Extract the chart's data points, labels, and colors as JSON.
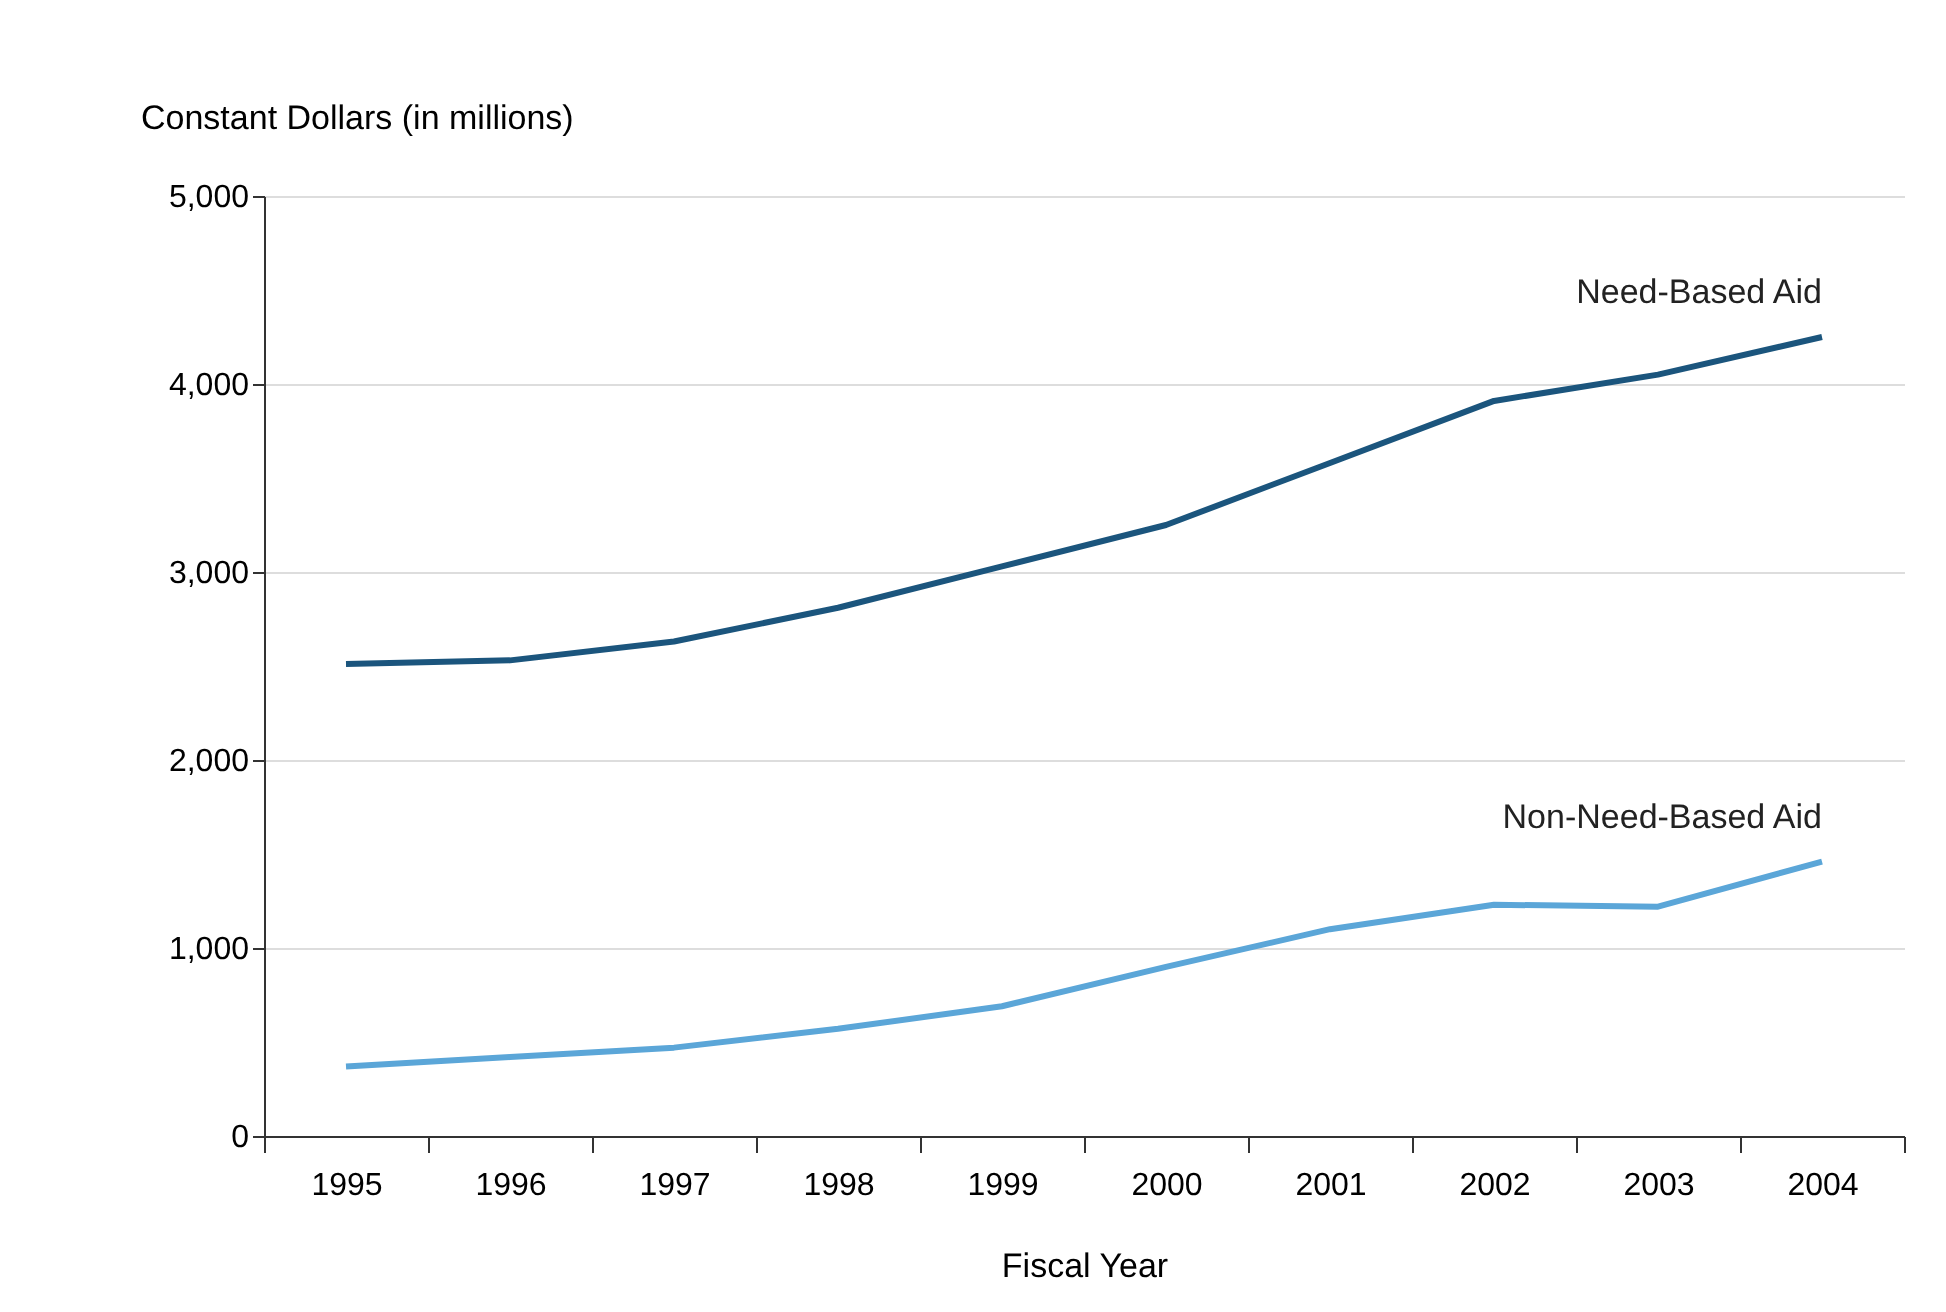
{
  "chart_data": {
    "type": "line",
    "xlabel": "Fiscal Year",
    "ylabel": "Constant Dollars (in millions)",
    "categories": [
      "1995",
      "1996",
      "1997",
      "1998",
      "1999",
      "2000",
      "2001",
      "2002",
      "2003",
      "2004"
    ],
    "series": [
      {
        "name": "Need-Based Aid",
        "color": "#1b557d",
        "values": [
          2510,
          2530,
          2630,
          2810,
          3030,
          3250,
          3580,
          3910,
          4050,
          4250
        ]
      },
      {
        "name": "Non-Need-Based Aid",
        "color": "#5ba6d8",
        "values": [
          370,
          420,
          470,
          570,
          690,
          900,
          1100,
          1230,
          1220,
          1460
        ]
      }
    ],
    "ylim": [
      0,
      5000
    ],
    "yticks": [
      0,
      {
        "value": 1000,
        "label": "1,000"
      },
      {
        "value": 2000,
        "label": "2,000"
      },
      {
        "value": 3000,
        "label": "3,000"
      },
      {
        "value": 4000,
        "label": "4,000"
      },
      {
        "value": 5000,
        "label": "5,000"
      }
    ],
    "grid": "y",
    "legend": false,
    "marker": "none",
    "line_style": "solid"
  }
}
